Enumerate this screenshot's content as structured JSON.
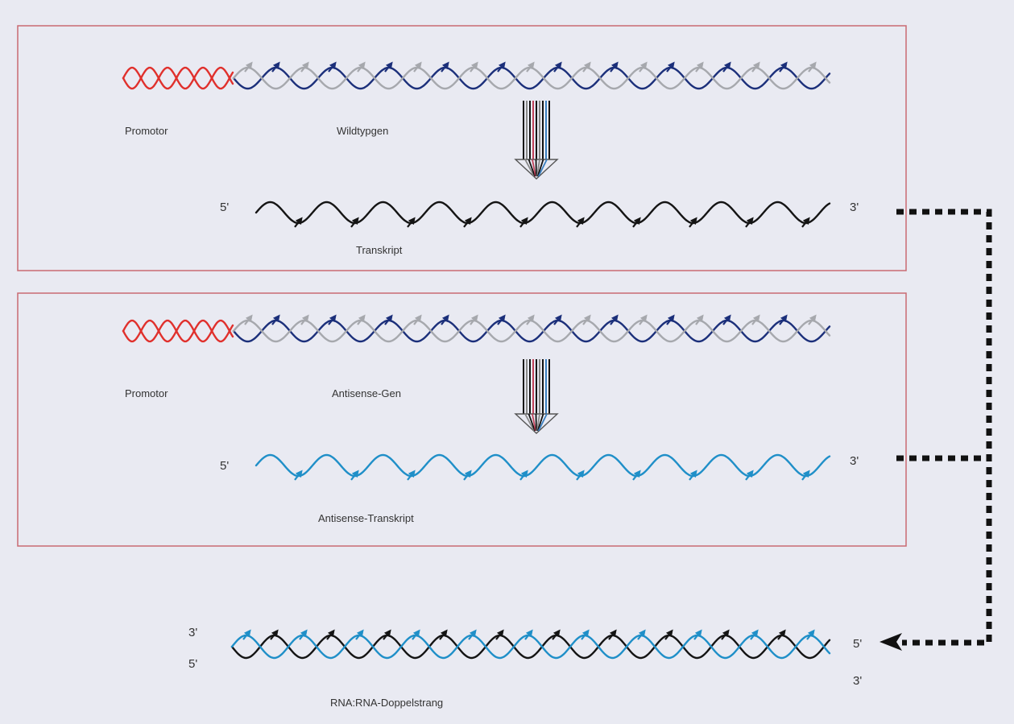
{
  "panel1": {
    "promoter_label": "Promotor",
    "gene_label": "Wildtypgen",
    "strand_5": "5'",
    "strand_3": "3'",
    "transcript_label": "Transkript"
  },
  "panel2": {
    "promoter_label": "Promotor",
    "gene_label": "Antisense-Gen",
    "strand_5": "5'",
    "strand_3": "3'",
    "transcript_label": "Antisense-Transkript"
  },
  "duplex": {
    "left_top": "3'",
    "left_bottom": "5'",
    "right_top": "5'",
    "right_bottom": "3'",
    "label": "RNA:RNA-Doppelstrang"
  },
  "colors": {
    "promoter": "#e0302c",
    "gene_dark": "#1b2f7a",
    "gene_light": "#a6a8ad",
    "sense_rna": "#141414",
    "antisense_rna": "#1f8fc8",
    "frame": "#c96b72",
    "connector": "#111111"
  }
}
